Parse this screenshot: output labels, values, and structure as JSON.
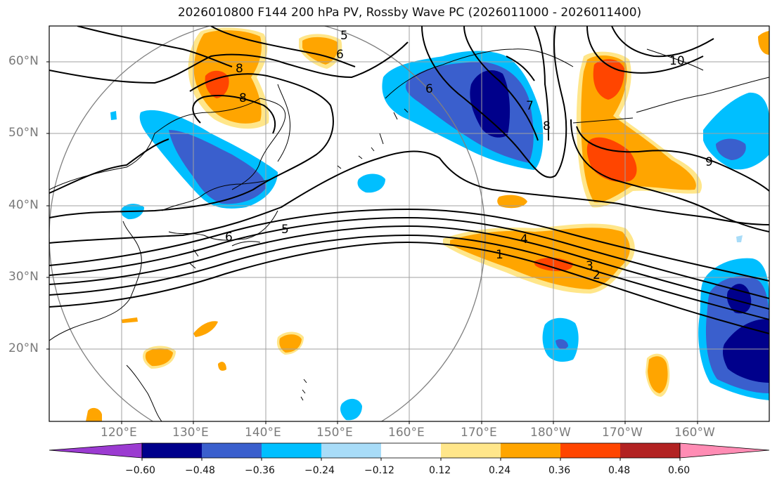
{
  "title": "2026010800 F144 200 hPa PV, Rossby Wave PC (2026011000 - 2026011400)",
  "axes": {
    "lat_labels": [
      "60°N",
      "50°N",
      "40°N",
      "30°N",
      "20°N"
    ],
    "lon_labels": [
      "120°E",
      "130°E",
      "140°E",
      "150°E",
      "160°E",
      "170°E",
      "180°W",
      "170°W",
      "160°W"
    ]
  },
  "contour_labels": [
    "5",
    "6",
    "8",
    "8",
    "6",
    "7",
    "8",
    "10",
    "9",
    "5",
    "6",
    "4",
    "1",
    "3",
    "2"
  ],
  "colorbar": {
    "ticks": [
      "−0.60",
      "−0.48",
      "−0.36",
      "−0.24",
      "−0.12",
      "0.12",
      "0.24",
      "0.36",
      "0.48",
      "0.60"
    ],
    "colors": [
      "#9b3bd1",
      "#00008b",
      "#3a5fcd",
      "#00bfff",
      "#a8dcf8",
      "#ffffff",
      "#ffe68a",
      "#ffa500",
      "#ff4500",
      "#b22222",
      "#ff8cb4"
    ]
  },
  "colors": {
    "land_line": "#000000",
    "grid": "#9e9e9e",
    "contour": "#000000",
    "circle": "#808080"
  }
}
